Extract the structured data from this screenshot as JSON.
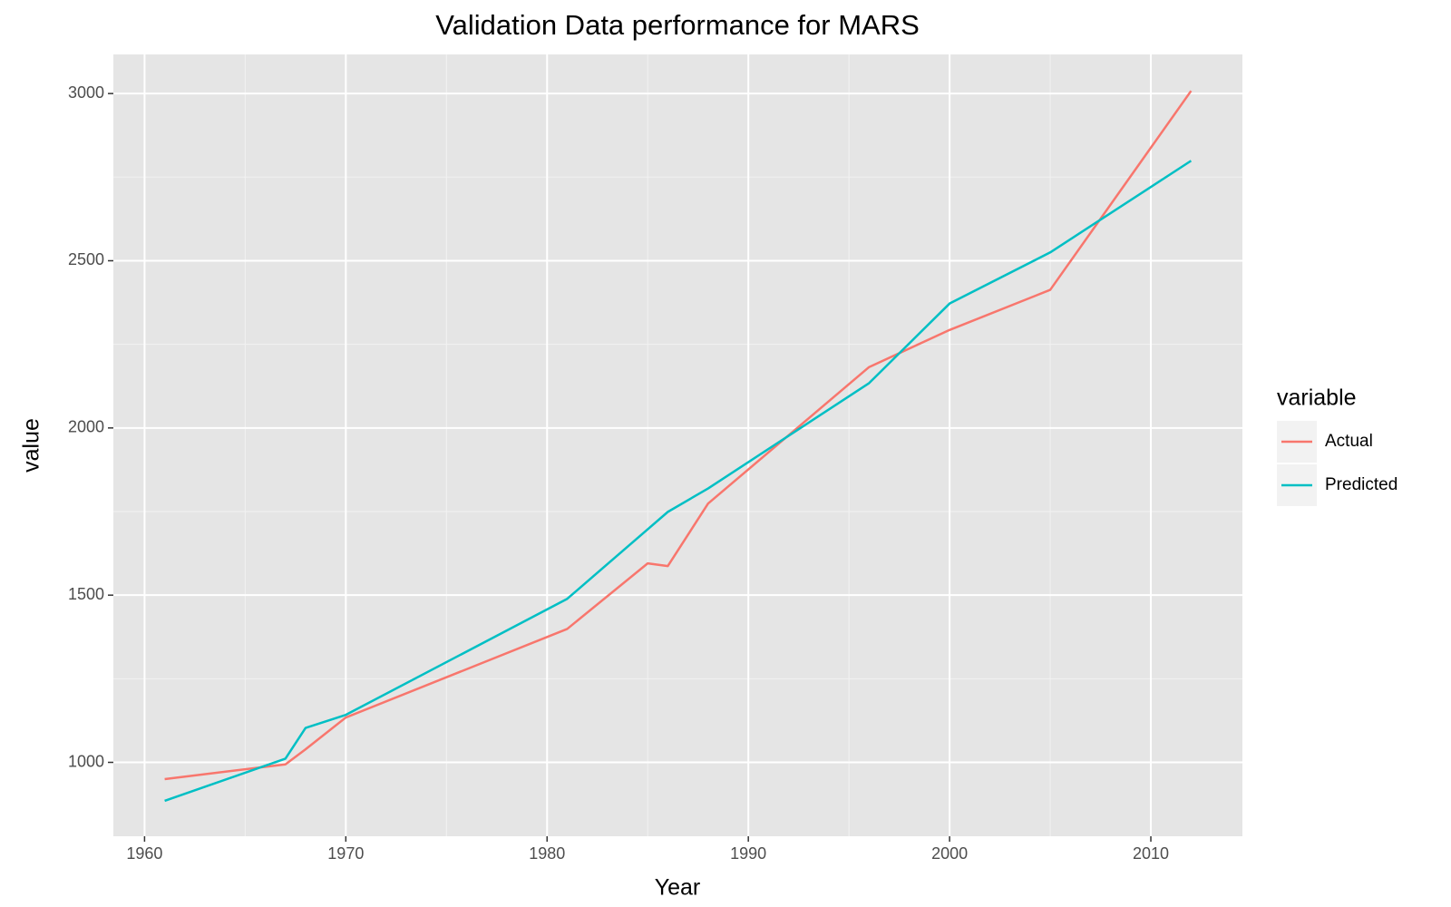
{
  "chart_data": {
    "type": "line",
    "title": "Validation Data performance for MARS",
    "x_label": "Year",
    "y_label": "value",
    "x": [
      1961,
      1967,
      1968,
      1970,
      1981,
      1985,
      1986,
      1988,
      1996,
      2000,
      2005,
      2012
    ],
    "series": [
      {
        "name": "Actual",
        "color": "#f8766d",
        "values": [
          950,
          994,
          1039,
          1134,
          1399,
          1595,
          1587,
          1774,
          2182,
          2293,
          2413,
          3008
        ]
      },
      {
        "name": "Predicted",
        "color": "#00bfc4",
        "values": [
          885,
          1011,
          1103,
          1142,
          1489,
          1697,
          1749,
          1819,
          2134,
          2372,
          2525,
          2799
        ]
      }
    ],
    "xlim": [
      1958.45,
      2014.55
    ],
    "xticks": [
      1960,
      1970,
      1980,
      1990,
      2000,
      2010
    ],
    "ylim": [
      779,
      3117
    ],
    "yticks": [
      1000,
      1500,
      2000,
      2500,
      3000
    ],
    "grid": true,
    "legend_title": "variable",
    "legend_position": "right"
  }
}
